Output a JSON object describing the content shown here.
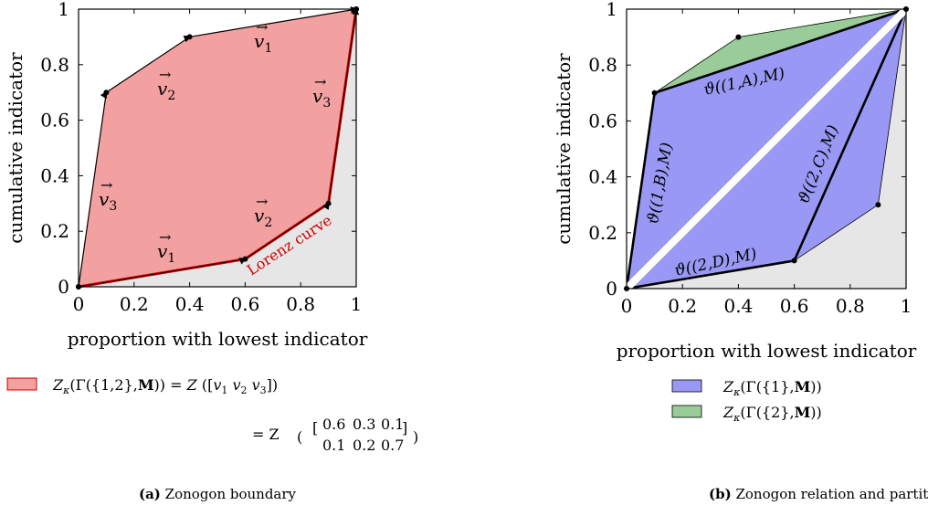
{
  "chart_data": [
    {
      "type": "area",
      "xlabel": "proportion with lowest indicator",
      "ylabel": "cumulative indicator",
      "xlim": [
        0,
        1
      ],
      "ylim": [
        0,
        1
      ],
      "xticks": [
        "0",
        "0.2",
        "0.4",
        "0.6",
        "0.8",
        "1"
      ],
      "yticks": [
        "0",
        "0.2",
        "0.4",
        "0.6",
        "0.8",
        "1"
      ],
      "upper_path": {
        "x": [
          0,
          0.1,
          0.4,
          1
        ],
        "y": [
          0,
          0.7,
          0.9,
          1
        ]
      },
      "lorenz_curve": {
        "label": "Lorenz curve",
        "x": [
          0,
          0.6,
          0.9,
          1
        ],
        "y": [
          0,
          0.1,
          0.3,
          1
        ],
        "color": "#cc0000"
      },
      "fill_color": "#f3a0a0",
      "region_below_color": "#e6e6e6",
      "vector_labels": [
        "v1",
        "v2",
        "v3"
      ],
      "legend": {
        "label": "Zκ(Γ({1,2},M)) = Z ([v1 v2 v3])",
        "line2_prefix": "= Z",
        "matrix": [
          [
            "0.6",
            "0.3",
            "0.1"
          ],
          [
            "0.1",
            "0.2",
            "0.7"
          ]
        ]
      },
      "caption_label": "(a)",
      "caption": "Zonogon boundary"
    },
    {
      "type": "area",
      "xlabel": "proportion with lowest indicator",
      "ylabel": "cumulative indicator",
      "xlim": [
        0,
        1
      ],
      "ylim": [
        0,
        1
      ],
      "xticks": [
        "0",
        "0.2",
        "0.4",
        "0.6",
        "0.8",
        "1"
      ],
      "yticks": [
        "0",
        "0.2",
        "0.4",
        "0.6",
        "0.8",
        "1"
      ],
      "series": [
        {
          "name": "Zκ(Γ({1},M))",
          "color": "#9999f5",
          "x": [
            0,
            0.1,
            1,
            0.9,
            0.6
          ],
          "y": [
            0,
            0.7,
            1,
            0.3,
            0.1
          ]
        },
        {
          "name": "Zκ(Γ({2},M))",
          "color": "#99cc99",
          "x": [
            0,
            0.6,
            1,
            0.4,
            0.1
          ],
          "y": [
            0,
            0.1,
            1,
            0.9,
            0.7
          ]
        }
      ],
      "edge_labels": [
        "ϑ((1,A),M)",
        "ϑ((1,B),M)",
        "ϑ((2,C),M)",
        "ϑ((2,D),M)"
      ],
      "caption_label": "(b)",
      "caption": "Zonogon relation and partition subgroups"
    }
  ]
}
